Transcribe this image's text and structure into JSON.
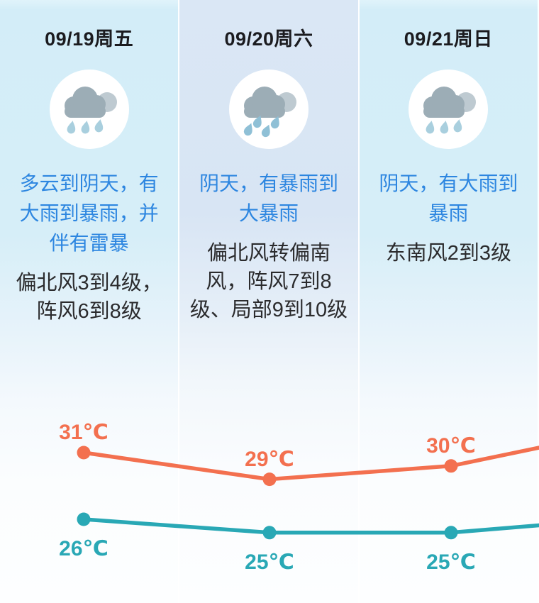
{
  "days": [
    {
      "date": "09/19周五",
      "icon": "rain-cloud-icon",
      "desc_lines": [
        "多云到阴天，有",
        "大雨到暴雨，并",
        "伴有雷暴"
      ],
      "wind_lines": [
        "偏北风3到4级，",
        "阵风6到8级"
      ],
      "highlighted": false
    },
    {
      "date": "09/20周六",
      "icon": "heavy-rain-cloud-icon",
      "desc_lines": [
        "阴天，有暴雨到",
        "大暴雨"
      ],
      "wind_lines": [
        "偏北风转偏南",
        "风，阵风7到8",
        "级、局部9到10级"
      ],
      "highlighted": true
    },
    {
      "date": "09/21周日",
      "icon": "rain-cloud-icon",
      "desc_lines": [
        "阴天，有大雨到",
        "暴雨"
      ],
      "wind_lines": [
        "东南风2到3级"
      ],
      "highlighted": false
    }
  ],
  "chart_data": {
    "type": "line",
    "categories": [
      "09/19周五",
      "09/20周六",
      "09/21周日"
    ],
    "unit": "℃",
    "series": [
      {
        "id": "high",
        "color": "#f3704f",
        "values": [
          31,
          29,
          30
        ],
        "labels": [
          "31℃",
          "29℃",
          "30℃"
        ],
        "label_position": "above"
      },
      {
        "id": "low",
        "color": "#29a8b5",
        "values": [
          26,
          25,
          25
        ],
        "labels": [
          "26℃",
          "25℃",
          "25℃"
        ],
        "label_position": "below"
      }
    ],
    "right_edge_trend": {
      "high": 31.5,
      "low": 25.6
    },
    "legend": "none",
    "grid": "off"
  },
  "colors": {
    "desc_text": "#2d86e0",
    "wind_text": "#2b2b2d",
    "date_text": "#1b1b1f",
    "day_bg": "#d5edf8",
    "highlight_day_bg": "#d9e6f5",
    "high_line": "#f3704f",
    "low_line": "#29a8b5"
  }
}
